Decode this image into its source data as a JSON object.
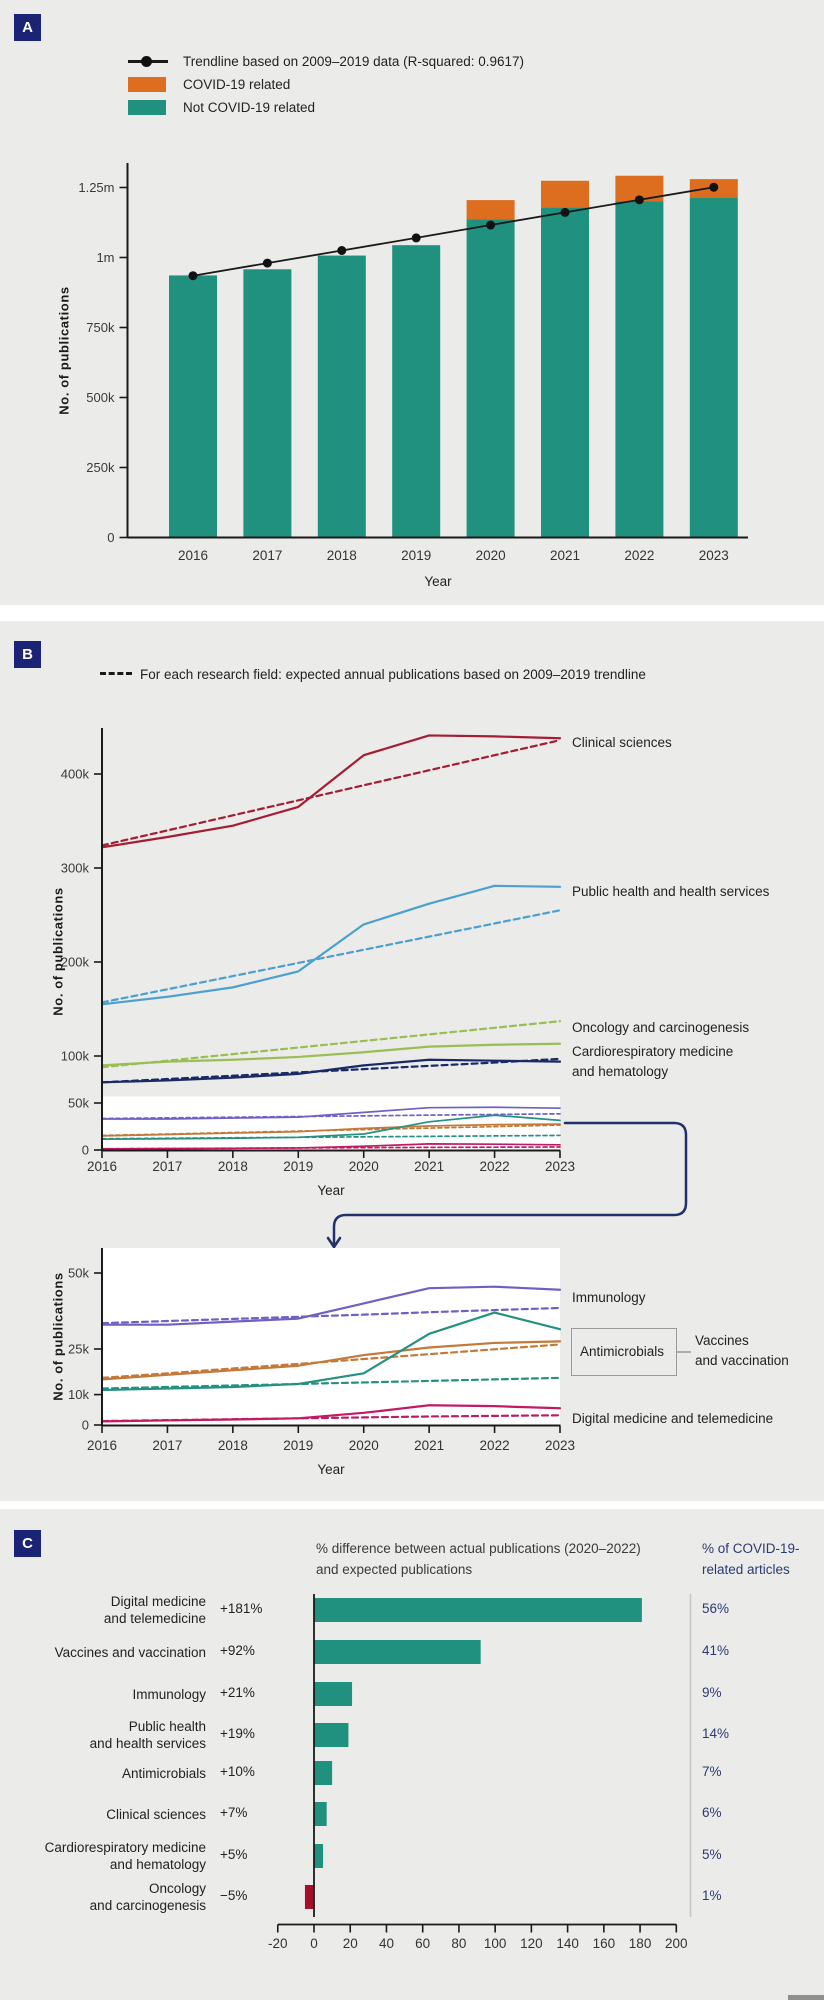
{
  "page": {
    "bg": "#ebebe9",
    "accent_navy": "#1b2376",
    "strip_color": "#8f8f8f"
  },
  "panelA": {
    "label": "A",
    "legend": {
      "trendline": "Trendline based on 2009–2019 data (R-squared: 0.9617)",
      "covid": "COVID-19 related",
      "not_covid": "Not COVID-19 related"
    }
  },
  "panelB": {
    "label": "B",
    "legend": "For each research field: expected annual publications based on 2009–2019 trendline",
    "labels": {
      "clinical": "Clinical sciences",
      "public_health": "Public health and health services",
      "oncology": "Oncology and carcinogenesis",
      "cardio": [
        "Cardiorespiratory medicine",
        "and hematology"
      ],
      "immunology": "Immunology",
      "antimicrobials": "Antimicrobials",
      "vaccines": [
        "Vaccines",
        "and vaccination"
      ],
      "digital": "Digital medicine and telemedicine"
    }
  },
  "panelC": {
    "label": "C",
    "header_left": [
      "% difference between actual publications (2020–2022)",
      "and expected publications"
    ],
    "header_right": [
      "% of COVID-19-",
      "related articles"
    ]
  },
  "chart_data": [
    {
      "id": "A",
      "type": "bar",
      "stacked": true,
      "categories": [
        "2016",
        "2017",
        "2018",
        "2019",
        "2020",
        "2021",
        "2022",
        "2023"
      ],
      "xlabel": "Year",
      "ylabel": "No. of publications",
      "units": "thousands of publications",
      "series": [
        {
          "name": "Not COVID-19 related",
          "color": "#21917f",
          "values": [
            936,
            958,
            1007,
            1044,
            1137,
            1179,
            1200,
            1214
          ]
        },
        {
          "name": "COVID-19 related",
          "color": "#dd6e20",
          "values": [
            0,
            0,
            0,
            0,
            68,
            95,
            92,
            66
          ]
        }
      ],
      "trendline": {
        "label": "Trendline based on 2009–2019 data (R-squared: 0.9617)",
        "r_squared": 0.9617,
        "color": "#1a1a1a",
        "values": [
          935,
          980,
          1025,
          1070,
          1116,
          1161,
          1206,
          1251
        ]
      },
      "yticks": [
        {
          "v": 0,
          "label": "0"
        },
        {
          "v": 250,
          "label": "250k"
        },
        {
          "v": 500,
          "label": "500k"
        },
        {
          "v": 750,
          "label": "750k"
        },
        {
          "v": 1000,
          "label": "1m"
        },
        {
          "v": 1250,
          "label": "1.25m"
        }
      ],
      "ylim": [
        0,
        1360
      ]
    },
    {
      "id": "B-main",
      "type": "line",
      "x": [
        "2016",
        "2017",
        "2018",
        "2019",
        "2020",
        "2021",
        "2022",
        "2023"
      ],
      "xlabel": "Year",
      "ylabel": "No. of publications",
      "units": "thousands of publications",
      "legend_note": "For each research field: expected annual publications based on 2009–2019 trendline",
      "yticks": [
        {
          "v": 0,
          "label": "0"
        },
        {
          "v": 50,
          "label": "50k"
        },
        {
          "v": 100,
          "label": "100k"
        },
        {
          "v": 200,
          "label": "200k"
        },
        {
          "v": 300,
          "label": "300k"
        },
        {
          "v": 400,
          "label": "400k"
        }
      ],
      "ylim": [
        0,
        448
      ],
      "zoom_band": [
        0,
        57
      ],
      "series": [
        {
          "name": "Clinical sciences",
          "color": "#a51c35",
          "group": "large",
          "actual": [
            322,
            333,
            345,
            365,
            420,
            441,
            440,
            438
          ],
          "expected": [
            324,
            340,
            356,
            372,
            388,
            404,
            420,
            436
          ]
        },
        {
          "name": "Public health and health services",
          "color": "#4ba0cf",
          "group": "large",
          "actual": [
            155,
            163,
            173,
            190,
            240,
            262,
            281,
            280
          ],
          "expected": [
            157,
            171,
            185,
            199,
            213,
            227,
            241,
            255
          ]
        },
        {
          "name": "Oncology and carcinogenesis",
          "color": "#9abd56",
          "group": "large",
          "actual": [
            90,
            94,
            96,
            99,
            104,
            110,
            112,
            113
          ],
          "expected": [
            88,
            95,
            102,
            109,
            116,
            123,
            130,
            137
          ]
        },
        {
          "name": "Cardiorespiratory medicine and hematology",
          "color": "#1a2a66",
          "group": "large",
          "actual": [
            72,
            74,
            77,
            81,
            90,
            96,
            95,
            94
          ],
          "expected": [
            72,
            75.5,
            79,
            82.5,
            86,
            89.5,
            93,
            97
          ]
        },
        {
          "name": "Immunology",
          "color": "#6e61c4",
          "group": "small",
          "actual": [
            33,
            33,
            34,
            35,
            40,
            45,
            45.5,
            44.5
          ],
          "expected": [
            33.5,
            34.2,
            34.9,
            35.6,
            36.3,
            37.1,
            37.8,
            38.5
          ]
        },
        {
          "name": "Antimicrobials",
          "color": "#c3793a",
          "group": "small",
          "actual": [
            15,
            16.5,
            18,
            19.5,
            23,
            25.5,
            27,
            27.5
          ],
          "expected": [
            15.5,
            17,
            18.6,
            20.1,
            21.7,
            23.3,
            24.9,
            26.5
          ]
        },
        {
          "name": "Vaccines and vaccination",
          "color": "#259180",
          "group": "small",
          "actual": [
            11.5,
            12,
            12.5,
            13.5,
            17,
            30,
            37,
            31.5
          ],
          "expected": [
            12,
            12.5,
            13,
            13.5,
            14,
            14.5,
            15,
            15.5
          ]
        },
        {
          "name": "Digital medicine and telemedicine",
          "color": "#c21b64",
          "group": "small",
          "actual": [
            1.2,
            1.5,
            1.8,
            2.2,
            4,
            6.5,
            6.2,
            5.5
          ],
          "expected": [
            1.3,
            1.6,
            1.9,
            2.2,
            2.5,
            2.8,
            3,
            3.2
          ]
        }
      ]
    },
    {
      "id": "B-zoom",
      "type": "line",
      "x": [
        "2016",
        "2017",
        "2018",
        "2019",
        "2020",
        "2021",
        "2022",
        "2023"
      ],
      "xlabel": "Year",
      "ylabel": "No. of publications",
      "units": "thousands of publications",
      "yticks": [
        {
          "v": 0,
          "label": "0"
        },
        {
          "v": 10,
          "label": "10k"
        },
        {
          "v": 25,
          "label": "25k"
        },
        {
          "v": 50,
          "label": "50k"
        }
      ],
      "ylim": [
        0,
        58
      ],
      "series": [
        {
          "name": "Immunology",
          "color": "#6e61c4",
          "actual": [
            33,
            33,
            34,
            35,
            40,
            45,
            45.5,
            44.5
          ],
          "expected": [
            33.5,
            34.2,
            34.9,
            35.6,
            36.3,
            37.1,
            37.8,
            38.5
          ]
        },
        {
          "name": "Antimicrobials",
          "color": "#c3793a",
          "actual": [
            15,
            16.5,
            18,
            19.5,
            23,
            25.5,
            27,
            27.5
          ],
          "expected": [
            15.5,
            17,
            18.6,
            20.1,
            21.7,
            23.3,
            24.9,
            26.5
          ]
        },
        {
          "name": "Vaccines and vaccination",
          "color": "#259180",
          "actual": [
            11.5,
            12,
            12.5,
            13.5,
            17,
            30,
            37,
            31.5
          ],
          "expected": [
            12,
            12.5,
            13,
            13.5,
            14,
            14.5,
            15,
            15.5
          ]
        },
        {
          "name": "Digital medicine and telemedicine",
          "color": "#c21b64",
          "actual": [
            1.2,
            1.5,
            1.8,
            2.2,
            4,
            6.5,
            6.2,
            5.5
          ],
          "expected": [
            1.3,
            1.6,
            1.9,
            2.2,
            2.5,
            2.8,
            3,
            3.2
          ]
        }
      ]
    },
    {
      "id": "C",
      "type": "bar",
      "orientation": "horizontal",
      "bar_color": "#21917f",
      "negative_bar_color": "#a50f2d",
      "xlim": [
        -20,
        200
      ],
      "xticks": [
        -20,
        0,
        20,
        40,
        60,
        80,
        100,
        120,
        140,
        160,
        180,
        200
      ],
      "rows": [
        {
          "field": [
            "Digital medicine",
            "and telemedicine"
          ],
          "diff": "+181%",
          "value": 181,
          "covid_share": "56%"
        },
        {
          "field": [
            "Vaccines and vaccination"
          ],
          "diff": "+92%",
          "value": 92,
          "covid_share": "41%"
        },
        {
          "field": [
            "Immunology"
          ],
          "diff": "+21%",
          "value": 21,
          "covid_share": "9%"
        },
        {
          "field": [
            "Public health",
            "and health services"
          ],
          "diff": "+19%",
          "value": 19,
          "covid_share": "14%"
        },
        {
          "field": [
            "Antimicrobials"
          ],
          "diff": "+10%",
          "value": 10,
          "covid_share": "7%"
        },
        {
          "field": [
            "Clinical sciences"
          ],
          "diff": "+7%",
          "value": 7,
          "covid_share": "6%"
        },
        {
          "field": [
            "Cardiorespiratory medicine",
            "and hematology"
          ],
          "diff": "+5%",
          "value": 5,
          "covid_share": "5%"
        },
        {
          "field": [
            "Oncology",
            "and carcinogenesis"
          ],
          "diff": "−5%",
          "value": -5,
          "covid_share": "1%"
        }
      ]
    }
  ]
}
